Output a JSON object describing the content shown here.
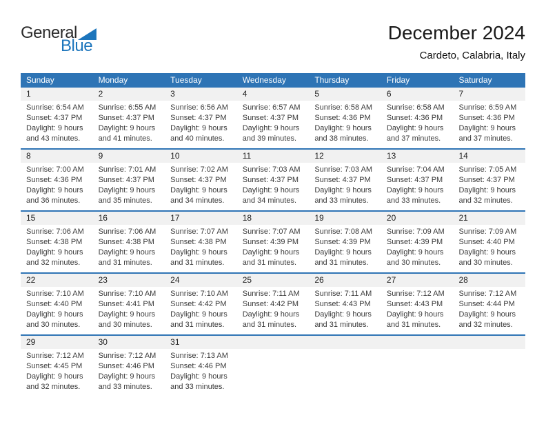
{
  "logo": {
    "word_top": "General",
    "word_bottom": "Blue"
  },
  "header": {
    "title": "December 2024",
    "location": "Cardeto, Calabria, Italy"
  },
  "colors": {
    "header_blue": "#2E74B5",
    "logo_blue": "#1C75BC",
    "band_gray": "#F1F1F1"
  },
  "calendar": {
    "weekdays": [
      "Sunday",
      "Monday",
      "Tuesday",
      "Wednesday",
      "Thursday",
      "Friday",
      "Saturday"
    ],
    "weeks": [
      [
        {
          "day": "1",
          "sunrise": "Sunrise: 6:54 AM",
          "sunset": "Sunset: 4:37 PM",
          "daylight1": "Daylight: 9 hours",
          "daylight2": "and 43 minutes."
        },
        {
          "day": "2",
          "sunrise": "Sunrise: 6:55 AM",
          "sunset": "Sunset: 4:37 PM",
          "daylight1": "Daylight: 9 hours",
          "daylight2": "and 41 minutes."
        },
        {
          "day": "3",
          "sunrise": "Sunrise: 6:56 AM",
          "sunset": "Sunset: 4:37 PM",
          "daylight1": "Daylight: 9 hours",
          "daylight2": "and 40 minutes."
        },
        {
          "day": "4",
          "sunrise": "Sunrise: 6:57 AM",
          "sunset": "Sunset: 4:37 PM",
          "daylight1": "Daylight: 9 hours",
          "daylight2": "and 39 minutes."
        },
        {
          "day": "5",
          "sunrise": "Sunrise: 6:58 AM",
          "sunset": "Sunset: 4:36 PM",
          "daylight1": "Daylight: 9 hours",
          "daylight2": "and 38 minutes."
        },
        {
          "day": "6",
          "sunrise": "Sunrise: 6:58 AM",
          "sunset": "Sunset: 4:36 PM",
          "daylight1": "Daylight: 9 hours",
          "daylight2": "and 37 minutes."
        },
        {
          "day": "7",
          "sunrise": "Sunrise: 6:59 AM",
          "sunset": "Sunset: 4:36 PM",
          "daylight1": "Daylight: 9 hours",
          "daylight2": "and 37 minutes."
        }
      ],
      [
        {
          "day": "8",
          "sunrise": "Sunrise: 7:00 AM",
          "sunset": "Sunset: 4:36 PM",
          "daylight1": "Daylight: 9 hours",
          "daylight2": "and 36 minutes."
        },
        {
          "day": "9",
          "sunrise": "Sunrise: 7:01 AM",
          "sunset": "Sunset: 4:37 PM",
          "daylight1": "Daylight: 9 hours",
          "daylight2": "and 35 minutes."
        },
        {
          "day": "10",
          "sunrise": "Sunrise: 7:02 AM",
          "sunset": "Sunset: 4:37 PM",
          "daylight1": "Daylight: 9 hours",
          "daylight2": "and 34 minutes."
        },
        {
          "day": "11",
          "sunrise": "Sunrise: 7:03 AM",
          "sunset": "Sunset: 4:37 PM",
          "daylight1": "Daylight: 9 hours",
          "daylight2": "and 34 minutes."
        },
        {
          "day": "12",
          "sunrise": "Sunrise: 7:03 AM",
          "sunset": "Sunset: 4:37 PM",
          "daylight1": "Daylight: 9 hours",
          "daylight2": "and 33 minutes."
        },
        {
          "day": "13",
          "sunrise": "Sunrise: 7:04 AM",
          "sunset": "Sunset: 4:37 PM",
          "daylight1": "Daylight: 9 hours",
          "daylight2": "and 33 minutes."
        },
        {
          "day": "14",
          "sunrise": "Sunrise: 7:05 AM",
          "sunset": "Sunset: 4:37 PM",
          "daylight1": "Daylight: 9 hours",
          "daylight2": "and 32 minutes."
        }
      ],
      [
        {
          "day": "15",
          "sunrise": "Sunrise: 7:06 AM",
          "sunset": "Sunset: 4:38 PM",
          "daylight1": "Daylight: 9 hours",
          "daylight2": "and 32 minutes."
        },
        {
          "day": "16",
          "sunrise": "Sunrise: 7:06 AM",
          "sunset": "Sunset: 4:38 PM",
          "daylight1": "Daylight: 9 hours",
          "daylight2": "and 31 minutes."
        },
        {
          "day": "17",
          "sunrise": "Sunrise: 7:07 AM",
          "sunset": "Sunset: 4:38 PM",
          "daylight1": "Daylight: 9 hours",
          "daylight2": "and 31 minutes."
        },
        {
          "day": "18",
          "sunrise": "Sunrise: 7:07 AM",
          "sunset": "Sunset: 4:39 PM",
          "daylight1": "Daylight: 9 hours",
          "daylight2": "and 31 minutes."
        },
        {
          "day": "19",
          "sunrise": "Sunrise: 7:08 AM",
          "sunset": "Sunset: 4:39 PM",
          "daylight1": "Daylight: 9 hours",
          "daylight2": "and 31 minutes."
        },
        {
          "day": "20",
          "sunrise": "Sunrise: 7:09 AM",
          "sunset": "Sunset: 4:39 PM",
          "daylight1": "Daylight: 9 hours",
          "daylight2": "and 30 minutes."
        },
        {
          "day": "21",
          "sunrise": "Sunrise: 7:09 AM",
          "sunset": "Sunset: 4:40 PM",
          "daylight1": "Daylight: 9 hours",
          "daylight2": "and 30 minutes."
        }
      ],
      [
        {
          "day": "22",
          "sunrise": "Sunrise: 7:10 AM",
          "sunset": "Sunset: 4:40 PM",
          "daylight1": "Daylight: 9 hours",
          "daylight2": "and 30 minutes."
        },
        {
          "day": "23",
          "sunrise": "Sunrise: 7:10 AM",
          "sunset": "Sunset: 4:41 PM",
          "daylight1": "Daylight: 9 hours",
          "daylight2": "and 30 minutes."
        },
        {
          "day": "24",
          "sunrise": "Sunrise: 7:10 AM",
          "sunset": "Sunset: 4:42 PM",
          "daylight1": "Daylight: 9 hours",
          "daylight2": "and 31 minutes."
        },
        {
          "day": "25",
          "sunrise": "Sunrise: 7:11 AM",
          "sunset": "Sunset: 4:42 PM",
          "daylight1": "Daylight: 9 hours",
          "daylight2": "and 31 minutes."
        },
        {
          "day": "26",
          "sunrise": "Sunrise: 7:11 AM",
          "sunset": "Sunset: 4:43 PM",
          "daylight1": "Daylight: 9 hours",
          "daylight2": "and 31 minutes."
        },
        {
          "day": "27",
          "sunrise": "Sunrise: 7:12 AM",
          "sunset": "Sunset: 4:43 PM",
          "daylight1": "Daylight: 9 hours",
          "daylight2": "and 31 minutes."
        },
        {
          "day": "28",
          "sunrise": "Sunrise: 7:12 AM",
          "sunset": "Sunset: 4:44 PM",
          "daylight1": "Daylight: 9 hours",
          "daylight2": "and 32 minutes."
        }
      ],
      [
        {
          "day": "29",
          "sunrise": "Sunrise: 7:12 AM",
          "sunset": "Sunset: 4:45 PM",
          "daylight1": "Daylight: 9 hours",
          "daylight2": "and 32 minutes."
        },
        {
          "day": "30",
          "sunrise": "Sunrise: 7:12 AM",
          "sunset": "Sunset: 4:46 PM",
          "daylight1": "Daylight: 9 hours",
          "daylight2": "and 33 minutes."
        },
        {
          "day": "31",
          "sunrise": "Sunrise: 7:13 AM",
          "sunset": "Sunset: 4:46 PM",
          "daylight1": "Daylight: 9 hours",
          "daylight2": "and 33 minutes."
        },
        null,
        null,
        null,
        null
      ]
    ]
  }
}
